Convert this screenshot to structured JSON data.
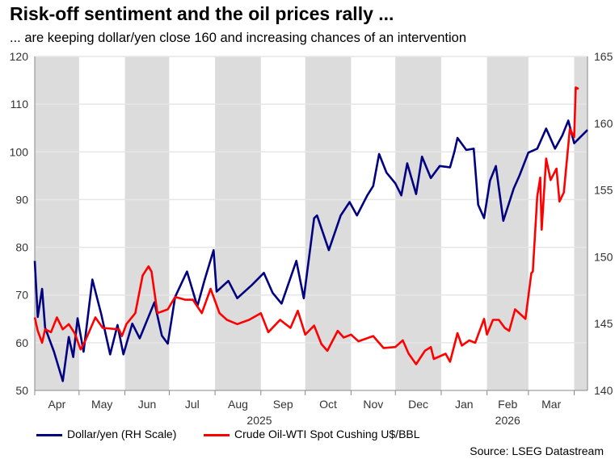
{
  "title": "Risk-off sentiment and the oil prices rally ...",
  "subtitle": "... are keeping dollar/yen close 160 and increasing chances of an intervention",
  "source": "Source: LSEG Datastream",
  "chart_data": {
    "type": "line",
    "xlim": [
      "2025-04-01",
      "2026-04-10"
    ],
    "ylim_left": [
      50,
      120
    ],
    "yticks_left": [
      50,
      60,
      70,
      80,
      90,
      100,
      110,
      120
    ],
    "ylim_right": [
      140,
      165
    ],
    "yticks_right": [
      140,
      145,
      150,
      155,
      160,
      165
    ],
    "grid": true,
    "shaded_months": true,
    "shade_color": "#dcdcdc",
    "legend_placement": "bottom",
    "months": [
      {
        "label": "Apr",
        "start": "2025-04-01",
        "shaded": true
      },
      {
        "label": "May",
        "start": "2025-05-01",
        "shaded": false
      },
      {
        "label": "Jun",
        "start": "2025-06-01",
        "shaded": true
      },
      {
        "label": "Jul",
        "start": "2025-07-01",
        "shaded": false
      },
      {
        "label": "Aug",
        "start": "2025-08-01",
        "shaded": true
      },
      {
        "label": "Sep",
        "start": "2025-09-01",
        "shaded": false
      },
      {
        "label": "Oct",
        "start": "2025-10-01",
        "shaded": true
      },
      {
        "label": "Nov",
        "start": "2025-11-01",
        "shaded": false
      },
      {
        "label": "Dec",
        "start": "2025-12-01",
        "shaded": true
      },
      {
        "label": "Jan",
        "start": "2026-01-01",
        "shaded": false
      },
      {
        "label": "Feb",
        "start": "2026-02-01",
        "shaded": true
      },
      {
        "label": "Mar",
        "start": "2026-03-01",
        "shaded": false
      },
      {
        "label": "",
        "start": "2026-04-01",
        "shaded": true
      }
    ],
    "years": [
      {
        "label": "2025",
        "center": "2025-08-31"
      },
      {
        "label": "2026",
        "center": "2026-02-15"
      }
    ],
    "series": [
      {
        "name": "Dollar/yen (RH Scale)",
        "axis": "right",
        "color": "#000080",
        "points": [
          [
            "2025-04-01",
            149.7
          ],
          [
            "2025-04-03",
            145.5
          ],
          [
            "2025-04-06",
            147.6
          ],
          [
            "2025-04-08",
            144.7
          ],
          [
            "2025-04-14",
            142.9
          ],
          [
            "2025-04-20",
            140.7
          ],
          [
            "2025-04-24",
            144.0
          ],
          [
            "2025-04-27",
            142.5
          ],
          [
            "2025-04-30",
            145.4
          ],
          [
            "2025-05-04",
            142.9
          ],
          [
            "2025-05-10",
            148.3
          ],
          [
            "2025-05-16",
            145.7
          ],
          [
            "2025-05-22",
            142.7
          ],
          [
            "2025-05-27",
            144.9
          ],
          [
            "2025-05-31",
            142.7
          ],
          [
            "2025-06-06",
            145.0
          ],
          [
            "2025-06-11",
            143.9
          ],
          [
            "2025-06-21",
            146.6
          ],
          [
            "2025-06-26",
            144.1
          ],
          [
            "2025-06-30",
            143.5
          ],
          [
            "2025-07-05",
            147.0
          ],
          [
            "2025-07-13",
            148.9
          ],
          [
            "2025-07-20",
            146.3
          ],
          [
            "2025-07-25",
            148.3
          ],
          [
            "2025-07-31",
            150.5
          ],
          [
            "2025-08-02",
            147.4
          ],
          [
            "2025-08-10",
            148.2
          ],
          [
            "2025-08-16",
            146.9
          ],
          [
            "2025-08-26",
            147.9
          ],
          [
            "2025-09-03",
            148.8
          ],
          [
            "2025-09-09",
            147.3
          ],
          [
            "2025-09-15",
            146.5
          ],
          [
            "2025-09-25",
            149.7
          ],
          [
            "2025-09-30",
            146.9
          ],
          [
            "2025-10-07",
            152.9
          ],
          [
            "2025-10-09",
            153.1
          ],
          [
            "2025-10-17",
            150.5
          ],
          [
            "2025-10-25",
            153.1
          ],
          [
            "2025-10-31",
            154.1
          ],
          [
            "2025-11-05",
            153.1
          ],
          [
            "2025-11-12",
            154.6
          ],
          [
            "2025-11-16",
            155.3
          ],
          [
            "2025-11-20",
            157.7
          ],
          [
            "2025-11-25",
            156.3
          ],
          [
            "2025-12-01",
            155.5
          ],
          [
            "2025-12-05",
            154.6
          ],
          [
            "2025-12-09",
            157.0
          ],
          [
            "2025-12-15",
            154.7
          ],
          [
            "2025-12-19",
            157.5
          ],
          [
            "2025-12-25",
            155.9
          ],
          [
            "2025-12-31",
            156.8
          ],
          [
            "2026-01-07",
            156.7
          ],
          [
            "2026-01-10",
            157.9
          ],
          [
            "2026-01-12",
            158.9
          ],
          [
            "2026-01-18",
            158.0
          ],
          [
            "2026-01-23",
            158.1
          ],
          [
            "2026-01-26",
            153.9
          ],
          [
            "2026-01-30",
            152.9
          ],
          [
            "2026-02-03",
            155.7
          ],
          [
            "2026-02-07",
            156.8
          ],
          [
            "2026-02-12",
            152.7
          ],
          [
            "2026-02-19",
            155.1
          ],
          [
            "2026-02-23",
            156.1
          ],
          [
            "2026-03-01",
            157.8
          ],
          [
            "2026-03-07",
            158.1
          ],
          [
            "2026-03-13",
            159.6
          ],
          [
            "2026-03-19",
            158.1
          ],
          [
            "2026-03-24",
            159.1
          ],
          [
            "2026-03-28",
            160.2
          ],
          [
            "2026-04-01",
            158.5
          ],
          [
            "2026-04-10",
            159.5
          ]
        ]
      },
      {
        "name": "Crude Oil-WTI Spot Cushing U$/BBL",
        "axis": "left",
        "color": "#ff0000",
        "points": [
          [
            "2025-04-01",
            65.3
          ],
          [
            "2025-04-03",
            62.5
          ],
          [
            "2025-04-06",
            60.0
          ],
          [
            "2025-04-08",
            62.8
          ],
          [
            "2025-04-12",
            62.2
          ],
          [
            "2025-04-16",
            65.3
          ],
          [
            "2025-04-20",
            62.8
          ],
          [
            "2025-04-24",
            63.9
          ],
          [
            "2025-04-28",
            62.0
          ],
          [
            "2025-05-02",
            58.6
          ],
          [
            "2025-05-05",
            60.3
          ],
          [
            "2025-05-12",
            65.3
          ],
          [
            "2025-05-17",
            63.1
          ],
          [
            "2025-05-28",
            62.8
          ],
          [
            "2025-05-30",
            61.4
          ],
          [
            "2025-06-02",
            63.9
          ],
          [
            "2025-06-08",
            66.2
          ],
          [
            "2025-06-13",
            74.1
          ],
          [
            "2025-06-17",
            76.0
          ],
          [
            "2025-06-19",
            74.9
          ],
          [
            "2025-06-23",
            66.2
          ],
          [
            "2025-06-30",
            67.0
          ],
          [
            "2025-07-05",
            69.6
          ],
          [
            "2025-07-12",
            69.0
          ],
          [
            "2025-07-17",
            69.0
          ],
          [
            "2025-07-23",
            66.2
          ],
          [
            "2025-07-29",
            71.3
          ],
          [
            "2025-08-04",
            66.2
          ],
          [
            "2025-08-09",
            64.8
          ],
          [
            "2025-08-16",
            63.9
          ],
          [
            "2025-08-24",
            64.8
          ],
          [
            "2025-09-01",
            66.2
          ],
          [
            "2025-09-06",
            62.2
          ],
          [
            "2025-09-14",
            64.8
          ],
          [
            "2025-09-21",
            63.1
          ],
          [
            "2025-09-26",
            66.7
          ],
          [
            "2025-10-01",
            61.7
          ],
          [
            "2025-10-07",
            63.6
          ],
          [
            "2025-10-12",
            59.7
          ],
          [
            "2025-10-16",
            58.3
          ],
          [
            "2025-10-23",
            62.5
          ],
          [
            "2025-10-27",
            61.1
          ],
          [
            "2025-11-01",
            61.7
          ],
          [
            "2025-11-06",
            60.3
          ],
          [
            "2025-11-16",
            61.4
          ],
          [
            "2025-11-23",
            58.9
          ],
          [
            "2025-12-01",
            59.1
          ],
          [
            "2025-12-06",
            60.5
          ],
          [
            "2025-12-10",
            57.7
          ],
          [
            "2025-12-15",
            55.5
          ],
          [
            "2025-12-21",
            58.3
          ],
          [
            "2025-12-25",
            59.1
          ],
          [
            "2025-12-27",
            56.6
          ],
          [
            "2026-01-04",
            57.7
          ],
          [
            "2026-01-07",
            56.0
          ],
          [
            "2026-01-12",
            62.0
          ],
          [
            "2026-01-15",
            59.4
          ],
          [
            "2026-01-20",
            60.5
          ],
          [
            "2026-01-24",
            60.0
          ],
          [
            "2026-01-30",
            65.0
          ],
          [
            "2026-02-01",
            61.7
          ],
          [
            "2026-02-05",
            64.8
          ],
          [
            "2026-02-09",
            64.8
          ],
          [
            "2026-02-13",
            63.1
          ],
          [
            "2026-02-16",
            62.5
          ],
          [
            "2026-02-20",
            67.0
          ],
          [
            "2026-02-27",
            65.0
          ],
          [
            "2026-03-03",
            74.6
          ],
          [
            "2026-03-04",
            74.9
          ],
          [
            "2026-03-07",
            90.7
          ],
          [
            "2026-03-09",
            94.6
          ],
          [
            "2026-03-10",
            83.7
          ],
          [
            "2026-03-13",
            98.6
          ],
          [
            "2026-03-16",
            94.1
          ],
          [
            "2026-03-20",
            96.5
          ],
          [
            "2026-03-22",
            89.6
          ],
          [
            "2026-03-25",
            91.5
          ],
          [
            "2026-03-29",
            104.8
          ],
          [
            "2026-04-01",
            103.1
          ],
          [
            "2026-04-02",
            113.5
          ],
          [
            "2026-04-04",
            113.2
          ]
        ]
      }
    ]
  }
}
